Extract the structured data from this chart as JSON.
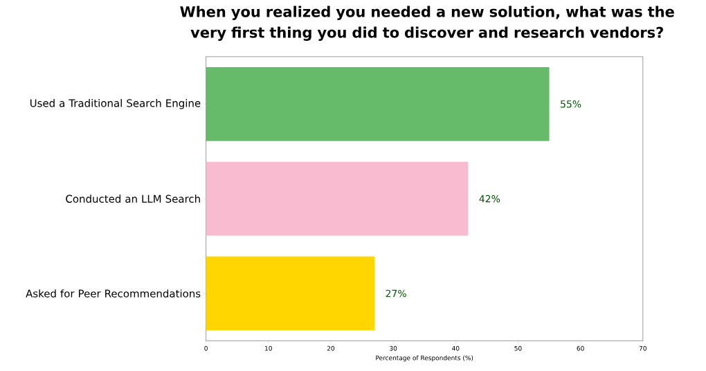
{
  "chart_data": {
    "type": "bar",
    "orientation": "horizontal",
    "title": "When you realized you needed a new solution, what was the very first thing you did to discover and research vendors?",
    "xlabel": "Percentage of Respondents (%)",
    "categories": [
      "Used a Traditional Search Engine",
      "Conducted an LLM Search",
      "Asked for Peer Recommendations"
    ],
    "values": [
      55,
      42,
      27
    ],
    "colors": [
      "#66bb6a",
      "#f8bbd0",
      "#ffd600"
    ],
    "value_labels": [
      "55%",
      "42%",
      "27%"
    ],
    "xlim": [
      0,
      70
    ],
    "xticks": [
      0,
      10,
      20,
      30,
      40,
      50,
      60,
      70
    ]
  }
}
